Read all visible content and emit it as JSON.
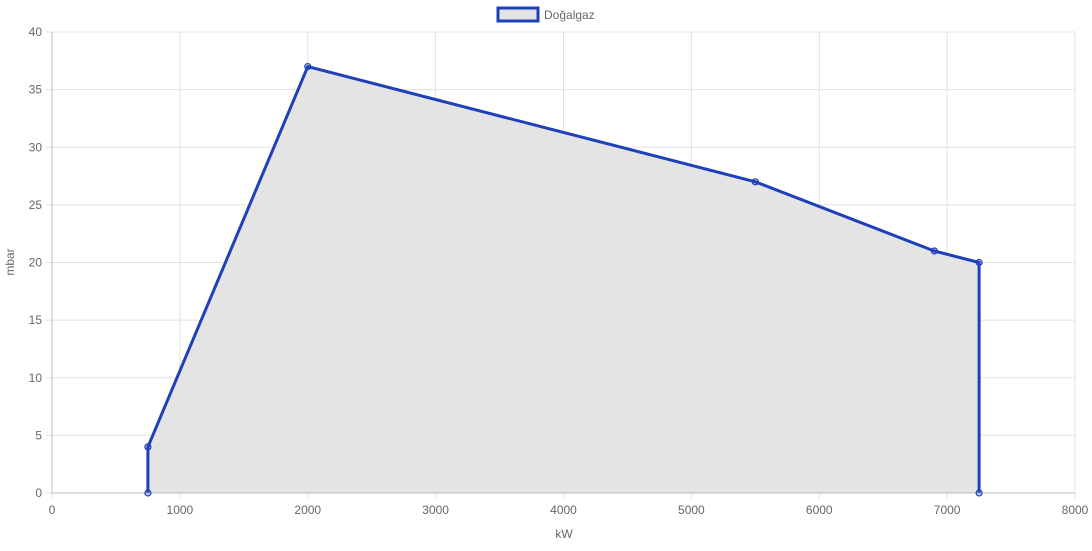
{
  "chart_data": {
    "type": "area",
    "xlabel": "kW",
    "ylabel": "mbar",
    "xlim": [
      0,
      8000
    ],
    "ylim": [
      0,
      40
    ],
    "x_ticks": [
      0,
      1000,
      2000,
      3000,
      4000,
      5000,
      6000,
      7000,
      8000
    ],
    "y_ticks": [
      0,
      5,
      10,
      15,
      20,
      25,
      30,
      35,
      40
    ],
    "grid": true,
    "legend": "top-center",
    "series": [
      {
        "name": "Doğalgaz",
        "color": "#1e40b8",
        "fill": "#e3e3e3",
        "points": [
          {
            "x": 750,
            "y": 0
          },
          {
            "x": 750,
            "y": 4
          },
          {
            "x": 2000,
            "y": 37
          },
          {
            "x": 5500,
            "y": 27
          },
          {
            "x": 6900,
            "y": 21
          },
          {
            "x": 7250,
            "y": 20
          },
          {
            "x": 7250,
            "y": 0
          }
        ]
      }
    ]
  }
}
